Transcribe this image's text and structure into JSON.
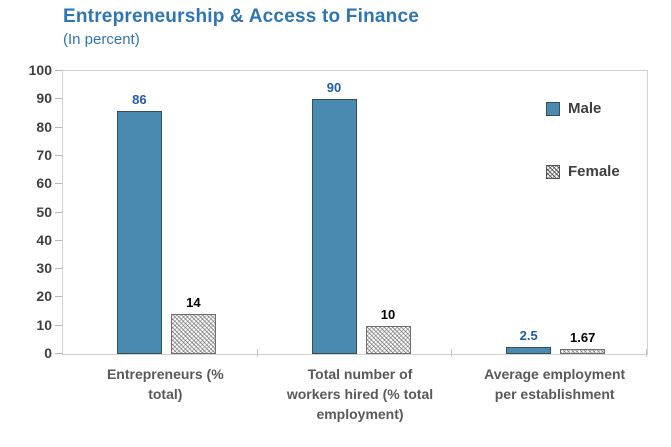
{
  "chart_data": {
    "type": "bar",
    "title": "Entrepreneurship & Access to Finance",
    "subtitle": "(In percent)",
    "title_color": "#2e75b6",
    "categories": [
      "Entrepreneurs (% total)",
      "Total number of workers hired (% total employment)",
      "Average employment per establishment"
    ],
    "category_lines": [
      [
        "Entrepreneurs (%",
        "total)"
      ],
      [
        "Total number of",
        "workers hired (% total",
        "employment)"
      ],
      [
        "Average employment",
        "per establishment"
      ]
    ],
    "series": [
      {
        "name": "Male",
        "values": [
          86,
          90,
          2.5
        ],
        "value_labels": [
          "86",
          "90",
          "2.5"
        ],
        "fill": "#4a8ab0",
        "border": "#31505f",
        "label_color": "#1f5ba8",
        "pattern": null
      },
      {
        "name": "Female",
        "values": [
          14,
          10,
          1.67
        ],
        "value_labels": [
          "14",
          "10",
          "1.67"
        ],
        "fill": "#ffffff",
        "border": "#6e6e6e",
        "label_color": "#000000",
        "pattern": "diagonal-crosshatch"
      }
    ],
    "ylim": [
      0,
      100
    ],
    "yticks": [
      0,
      10,
      20,
      30,
      40,
      50,
      60,
      70,
      80,
      90,
      100
    ],
    "grid": false,
    "legend_position": "right"
  }
}
